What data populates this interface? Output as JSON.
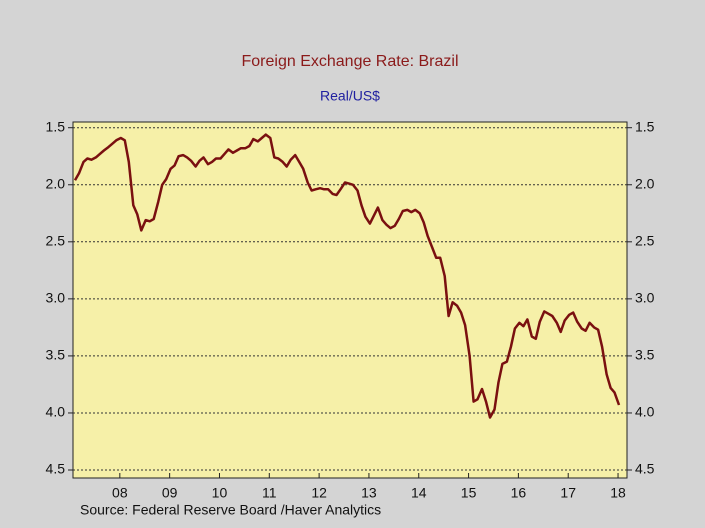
{
  "chart_data": {
    "type": "line",
    "title": "Foreign Exchange Rate:  Brazil",
    "subtitle": "Real/US$",
    "source": "Source:  Federal Reserve Board /Haver Analytics",
    "y_inverted": true,
    "grid": true,
    "xlim": [
      2007.56,
      2018.68
    ],
    "ylim": [
      1.45,
      4.57
    ],
    "xticks": [
      {
        "value": 2008.5,
        "label": "08"
      },
      {
        "value": 2009.5,
        "label": "09"
      },
      {
        "value": 2010.5,
        "label": "10"
      },
      {
        "value": 2011.5,
        "label": "11"
      },
      {
        "value": 2012.5,
        "label": "12"
      },
      {
        "value": 2013.5,
        "label": "13"
      },
      {
        "value": 2014.5,
        "label": "14"
      },
      {
        "value": 2015.5,
        "label": "15"
      },
      {
        "value": 2016.5,
        "label": "16"
      },
      {
        "value": 2017.5,
        "label": "17"
      },
      {
        "value": 2018.5,
        "label": "18"
      }
    ],
    "yticks": [
      1.5,
      {
        "value": 2,
        "label": "2.0"
      },
      2.5,
      {
        "value": 3,
        "label": "3.0"
      },
      3.5,
      {
        "value": 4,
        "label": "4.0"
      },
      4.5
    ],
    "x": [
      2007.6,
      2007.68,
      2007.77,
      2007.85,
      2007.93,
      2008.02,
      2008.1,
      2008.18,
      2008.27,
      2008.35,
      2008.43,
      2008.52,
      2008.6,
      2008.68,
      2008.77,
      2008.85,
      2008.93,
      2009.02,
      2009.1,
      2009.18,
      2009.27,
      2009.35,
      2009.43,
      2009.52,
      2009.6,
      2009.68,
      2009.77,
      2009.85,
      2009.93,
      2010.02,
      2010.1,
      2010.18,
      2010.27,
      2010.35,
      2010.43,
      2010.52,
      2010.6,
      2010.68,
      2010.77,
      2010.85,
      2010.93,
      2011.02,
      2011.1,
      2011.18,
      2011.27,
      2011.35,
      2011.43,
      2011.52,
      2011.6,
      2011.68,
      2011.77,
      2011.85,
      2011.93,
      2012.02,
      2012.1,
      2012.18,
      2012.27,
      2012.35,
      2012.43,
      2012.52,
      2012.6,
      2012.68,
      2012.77,
      2012.85,
      2012.93,
      2013.02,
      2013.1,
      2013.18,
      2013.27,
      2013.35,
      2013.43,
      2013.52,
      2013.6,
      2013.68,
      2013.77,
      2013.85,
      2013.93,
      2014.02,
      2014.1,
      2014.18,
      2014.27,
      2014.35,
      2014.43,
      2014.52,
      2014.6,
      2014.68,
      2014.77,
      2014.85,
      2014.93,
      2015.02,
      2015.1,
      2015.18,
      2015.27,
      2015.35,
      2015.43,
      2015.52,
      2015.6,
      2015.68,
      2015.77,
      2015.85,
      2015.93,
      2016.02,
      2016.1,
      2016.18,
      2016.27,
      2016.35,
      2016.43,
      2016.52,
      2016.6,
      2016.68,
      2016.77,
      2016.85,
      2016.93,
      2017.02,
      2017.1,
      2017.18,
      2017.27,
      2017.35,
      2017.43,
      2017.52,
      2017.6,
      2017.68,
      2017.77,
      2017.85,
      2017.93,
      2018.02,
      2018.1,
      2018.18,
      2018.27,
      2018.35,
      2018.43,
      2018.52
    ],
    "series": [
      {
        "color": "#7a1010",
        "values": [
          1.96,
          1.9,
          1.8,
          1.77,
          1.78,
          1.76,
          1.73,
          1.7,
          1.67,
          1.64,
          1.61,
          1.59,
          1.61,
          1.8,
          2.18,
          2.26,
          2.4,
          2.31,
          2.32,
          2.3,
          2.15,
          2.0,
          1.95,
          1.86,
          1.83,
          1.75,
          1.74,
          1.76,
          1.79,
          1.84,
          1.79,
          1.76,
          1.82,
          1.8,
          1.77,
          1.77,
          1.73,
          1.69,
          1.72,
          1.7,
          1.68,
          1.68,
          1.66,
          1.6,
          1.62,
          1.59,
          1.56,
          1.59,
          1.76,
          1.77,
          1.8,
          1.84,
          1.78,
          1.74,
          1.8,
          1.86,
          1.98,
          2.05,
          2.04,
          2.03,
          2.04,
          2.04,
          2.08,
          2.09,
          2.04,
          1.98,
          1.99,
          2.0,
          2.05,
          2.18,
          2.28,
          2.34,
          2.27,
          2.2,
          2.31,
          2.35,
          2.38,
          2.36,
          2.3,
          2.23,
          2.22,
          2.24,
          2.22,
          2.25,
          2.33,
          2.45,
          2.55,
          2.64,
          2.64,
          2.8,
          3.15,
          3.03,
          3.06,
          3.12,
          3.23,
          3.5,
          3.9,
          3.88,
          3.79,
          3.9,
          4.04,
          3.97,
          3.73,
          3.57,
          3.55,
          3.42,
          3.26,
          3.21,
          3.24,
          3.18,
          3.33,
          3.35,
          3.2,
          3.11,
          3.13,
          3.15,
          3.21,
          3.29,
          3.19,
          3.14,
          3.12,
          3.2,
          3.26,
          3.28,
          3.21,
          3.25,
          3.27,
          3.42,
          3.66,
          3.78,
          3.82,
          3.93
        ]
      }
    ]
  }
}
